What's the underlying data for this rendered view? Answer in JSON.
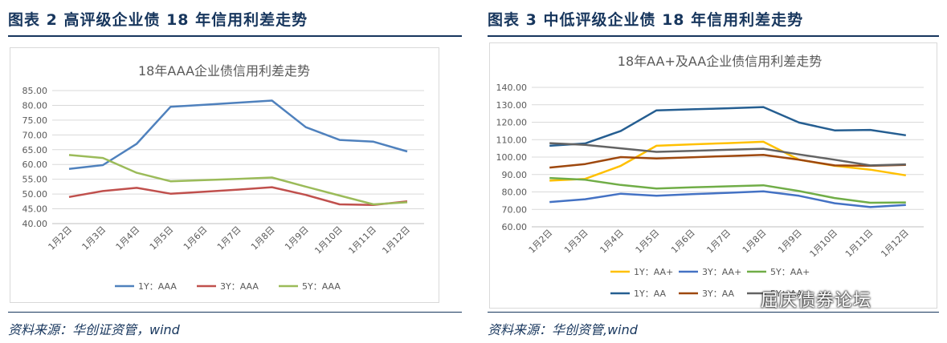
{
  "left": {
    "figure_title": "图表 2   高评级企业债 18 年信用利差走势",
    "source": "资料来源：华创证资管，wind"
  },
  "right": {
    "figure_title": "图表 3   中低评级企业债 18 年信用利差走势",
    "source": "资料来源：华创资管,wind",
    "watermark": "屈庆债券论坛"
  },
  "chart_data": [
    {
      "type": "line",
      "title": "18年AAA企业债信用利差走势",
      "categories": [
        "1月2日",
        "1月3日",
        "1月4日",
        "1月5日",
        "1月6日",
        "1月7日",
        "1月8日",
        "1月9日",
        "1月10日",
        "1月11日",
        "1月12日"
      ],
      "ylim": [
        40,
        85
      ],
      "yticks": [
        "40.00",
        "45.00",
        "50.00",
        "55.00",
        "60.00",
        "65.00",
        "70.00",
        "75.00",
        "80.00",
        "85.00"
      ],
      "legend_position": "bottom",
      "grid": true,
      "series": [
        {
          "name": "1Y：AAA",
          "color": "#4f81bd",
          "values": [
            58.5,
            59.8,
            67.0,
            79.5,
            80.2,
            80.9,
            81.6,
            72.6,
            68.3,
            67.7,
            64.4
          ]
        },
        {
          "name": "3Y：AAA",
          "color": "#c0504d",
          "values": [
            49.0,
            51.0,
            52.1,
            50.1,
            50.8,
            51.5,
            52.3,
            49.7,
            46.5,
            46.3,
            47.5
          ]
        },
        {
          "name": "5Y：AAA",
          "color": "#9bbb59",
          "values": [
            63.2,
            62.2,
            57.2,
            54.3,
            54.7,
            55.1,
            55.6,
            52.5,
            49.5,
            46.5,
            47.2
          ]
        }
      ]
    },
    {
      "type": "line",
      "title": "18年AA+及AA企业债信用利差走势",
      "categories": [
        "1月2日",
        "1月3日",
        "1月4日",
        "1月5日",
        "1月6日",
        "1月7日",
        "1月8日",
        "1月9日",
        "1月10日",
        "1月11日",
        "1月12日"
      ],
      "ylim": [
        60,
        140
      ],
      "yticks": [
        "60.00",
        "70.00",
        "80.00",
        "90.00",
        "100.00",
        "110.00",
        "120.00",
        "130.00",
        "140.00"
      ],
      "legend_position": "bottom",
      "grid": true,
      "series": [
        {
          "name": "1Y：AA+",
          "color": "#ffc000",
          "values": [
            86.5,
            87.5,
            95.0,
            106.5,
            107.3,
            108.0,
            108.8,
            98.5,
            95.0,
            92.8,
            89.5
          ]
        },
        {
          "name": "3Y：AA+",
          "color": "#4472c4",
          "values": [
            74.2,
            75.8,
            79.0,
            77.8,
            78.7,
            79.5,
            80.3,
            77.8,
            73.5,
            71.3,
            72.5
          ]
        },
        {
          "name": "5Y：AA+",
          "color": "#70ad47",
          "values": [
            88.0,
            87.0,
            84.0,
            82.0,
            82.6,
            83.2,
            83.8,
            80.5,
            76.5,
            73.8,
            74.0
          ]
        },
        {
          "name": "1Y：AA",
          "color": "#255e91",
          "values": [
            106.5,
            107.8,
            115.0,
            126.8,
            127.4,
            128.0,
            128.7,
            119.8,
            115.3,
            115.6,
            112.5
          ]
        },
        {
          "name": "3Y：AA",
          "color": "#9e480e",
          "values": [
            94.0,
            96.0,
            100.0,
            99.2,
            99.9,
            100.6,
            101.3,
            98.5,
            95.2,
            95.0,
            95.5
          ]
        },
        {
          "name": "5Y：AA",
          "color": "#636363",
          "values": [
            108.0,
            107.0,
            105.0,
            103.0,
            103.6,
            104.2,
            104.8,
            101.5,
            98.5,
            95.2,
            95.8
          ]
        }
      ]
    }
  ]
}
